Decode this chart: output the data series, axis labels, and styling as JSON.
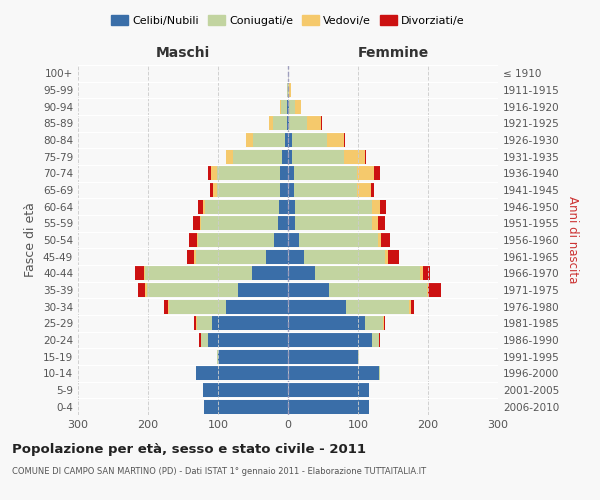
{
  "age_groups": [
    "0-4",
    "5-9",
    "10-14",
    "15-19",
    "20-24",
    "25-29",
    "30-34",
    "35-39",
    "40-44",
    "45-49",
    "50-54",
    "55-59",
    "60-64",
    "65-69",
    "70-74",
    "75-79",
    "80-84",
    "85-89",
    "90-94",
    "95-99",
    "100+"
  ],
  "birth_years": [
    "2006-2010",
    "2001-2005",
    "1996-2000",
    "1991-1995",
    "1986-1990",
    "1981-1985",
    "1976-1980",
    "1971-1975",
    "1966-1970",
    "1961-1965",
    "1956-1960",
    "1951-1955",
    "1946-1950",
    "1941-1945",
    "1936-1940",
    "1931-1935",
    "1926-1930",
    "1921-1925",
    "1916-1920",
    "1911-1915",
    "≤ 1910"
  ],
  "males": {
    "celibi": [
      120,
      122,
      132,
      100,
      115,
      108,
      88,
      72,
      52,
      32,
      20,
      14,
      13,
      12,
      12,
      8,
      5,
      2,
      2,
      0,
      0
    ],
    "coniugati": [
      0,
      0,
      0,
      2,
      10,
      22,
      82,
      130,
      152,
      100,
      108,
      110,
      105,
      90,
      90,
      70,
      45,
      20,
      8,
      2,
      0
    ],
    "vedovi": [
      0,
      0,
      0,
      0,
      0,
      2,
      2,
      2,
      2,
      2,
      2,
      2,
      3,
      5,
      8,
      10,
      10,
      5,
      2,
      0,
      0
    ],
    "divorziati": [
      0,
      0,
      0,
      0,
      2,
      2,
      5,
      10,
      12,
      10,
      12,
      10,
      8,
      5,
      5,
      0,
      0,
      0,
      0,
      0,
      0
    ]
  },
  "females": {
    "nubili": [
      115,
      115,
      130,
      100,
      120,
      110,
      83,
      58,
      38,
      23,
      16,
      10,
      10,
      8,
      8,
      5,
      5,
      2,
      2,
      0,
      0
    ],
    "coniugate": [
      0,
      0,
      2,
      2,
      10,
      25,
      90,
      140,
      150,
      115,
      112,
      110,
      110,
      90,
      90,
      75,
      50,
      25,
      8,
      2,
      0
    ],
    "vedove": [
      0,
      0,
      0,
      0,
      0,
      2,
      2,
      2,
      5,
      5,
      5,
      8,
      12,
      20,
      25,
      30,
      25,
      20,
      8,
      2,
      0
    ],
    "divorziate": [
      0,
      0,
      0,
      0,
      2,
      2,
      5,
      18,
      10,
      15,
      12,
      10,
      8,
      5,
      8,
      2,
      2,
      2,
      0,
      0,
      0
    ]
  },
  "colors": {
    "celibi": "#3a6ea8",
    "coniugati": "#c2d4a0",
    "vedovi": "#f5c96c",
    "divorziati": "#cc1111"
  },
  "legend_labels": [
    "Celibi/Nubili",
    "Coniugati/e",
    "Vedovi/e",
    "Divorziati/e"
  ],
  "title": "Popolazione per età, sesso e stato civile - 2011",
  "subtitle": "COMUNE DI CAMPO SAN MARTINO (PD) - Dati ISTAT 1° gennaio 2011 - Elaborazione TUTTAITALIA.IT",
  "xlabel_left": "Maschi",
  "xlabel_right": "Femmine",
  "ylabel_left": "Fasce di età",
  "ylabel_right": "Anni di nascita",
  "xlim": 300,
  "background_color": "#f8f8f8",
  "grid_color": "#cccccc"
}
